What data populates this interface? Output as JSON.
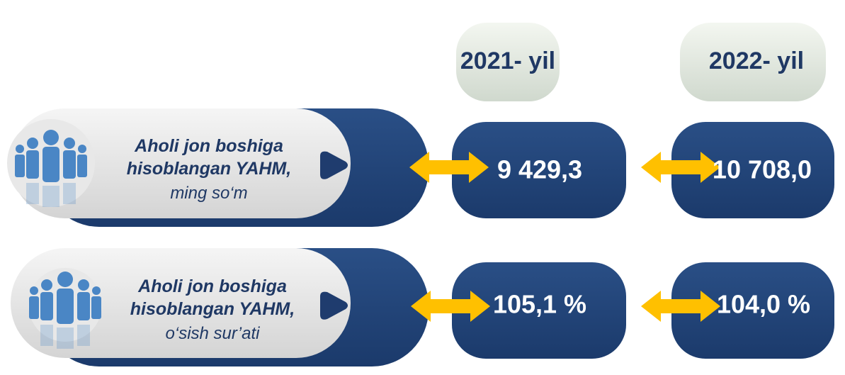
{
  "headers": [
    "2021- yil",
    "2022- yil"
  ],
  "rows": [
    {
      "label": [
        "Aholi jon boshiga",
        "hisoblangan YAHM,"
      ],
      "unit": "ming so‘m",
      "values": [
        "9 429,3",
        "10 708,0"
      ]
    },
    {
      "label": [
        "Aholi jon boshiga",
        "hisoblangan YAHM,"
      ],
      "unit": "o‘sish sur’ati",
      "values": [
        "105,1 %",
        "104,0 %"
      ]
    }
  ]
}
